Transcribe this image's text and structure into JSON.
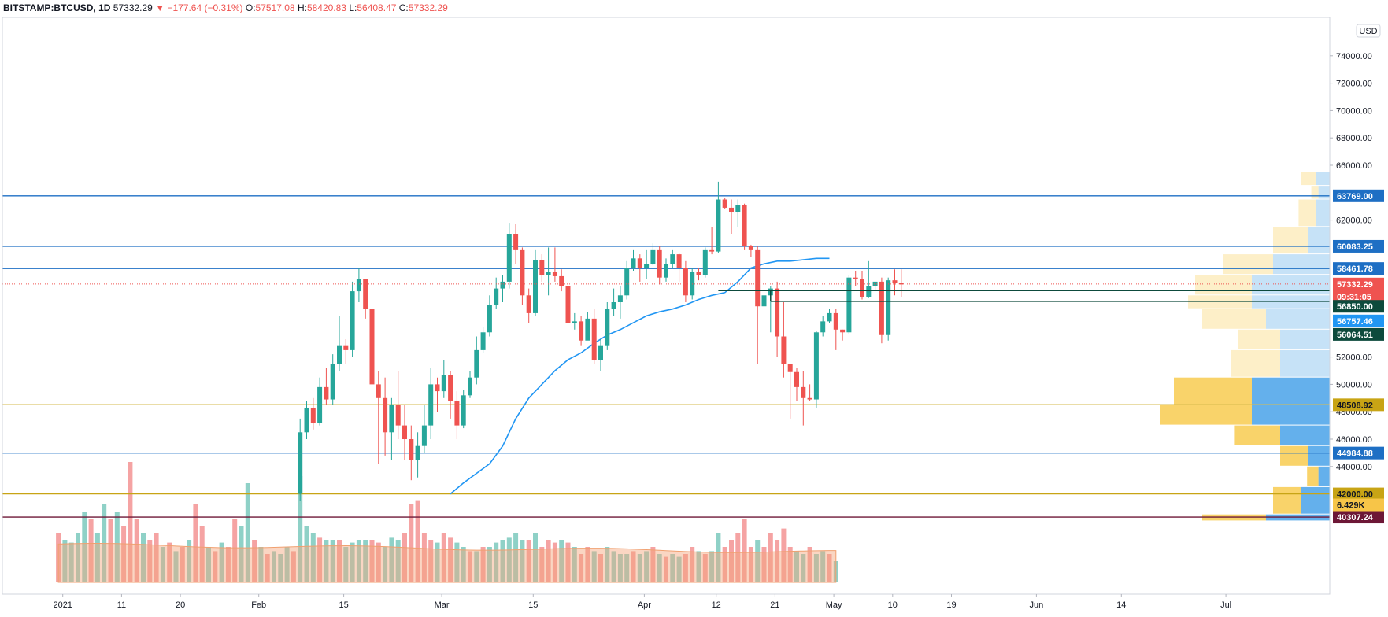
{
  "header": {
    "symbol": "BITSTAMP:BTCUSD, 1D",
    "last": "57332.29",
    "change": "−177.64 (−0.31%)",
    "o_label": "O:",
    "o_value": "57517.08",
    "h_label": "H:",
    "h_value": "58420.83",
    "l_label": "L:",
    "l_value": "56408.47",
    "c_label": "C:",
    "c_value": "57332.29"
  },
  "currency_label": "USD",
  "colors": {
    "up": "#26a69a",
    "down": "#ef5350",
    "ma": "#2196f3",
    "level_blue": "#1e6fc4",
    "level_gold": "#c8a415",
    "level_maroon": "#6d1736",
    "level_dark": "#0d4a3c"
  },
  "chart_data": {
    "type": "candlestick",
    "ylim": [
      40000,
      76000
    ],
    "y_ticks": [
      {
        "v": 74000,
        "label": "74000.00"
      },
      {
        "v": 72000,
        "label": "72000.00"
      },
      {
        "v": 70000,
        "label": "70000.00"
      },
      {
        "v": 68000,
        "label": "68000.00"
      },
      {
        "v": 66000,
        "label": "66000.00"
      },
      {
        "v": 62000,
        "label": "62000.00"
      },
      {
        "v": 52000,
        "label": "52000.00"
      },
      {
        "v": 50000,
        "label": "50000.00"
      },
      {
        "v": 48000,
        "label": "48000.00"
      },
      {
        "v": 46000,
        "label": "46000.00"
      },
      {
        "v": 44000,
        "label": "44000.00"
      }
    ],
    "x_range_days": [
      0,
      212
    ],
    "x_ticks": [
      {
        "d": 4,
        "label": "2021"
      },
      {
        "d": 13,
        "label": "11"
      },
      {
        "d": 22,
        "label": "20"
      },
      {
        "d": 34,
        "label": "Feb"
      },
      {
        "d": 47,
        "label": "15"
      },
      {
        "d": 62,
        "label": "Mar"
      },
      {
        "d": 76,
        "label": "15"
      },
      {
        "d": 93,
        "label": "Apr"
      },
      {
        "d": 104,
        "label": "12"
      },
      {
        "d": 113,
        "label": "21"
      },
      {
        "d": 122,
        "label": "May"
      },
      {
        "d": 131,
        "label": "10"
      },
      {
        "d": 140,
        "label": "19"
      },
      {
        "d": 153,
        "label": "Jun"
      },
      {
        "d": 166,
        "label": "14"
      },
      {
        "d": 182,
        "label": "Jul"
      }
    ],
    "candles": [
      [
        42,
        46.5,
        41.5,
        47.5
      ],
      [
        46.5,
        48.3,
        46,
        48.8
      ],
      [
        48.3,
        47.2,
        46.7,
        49
      ],
      [
        47.2,
        49.8,
        47,
        50.5
      ],
      [
        49.8,
        48.9,
        48.5,
        51.2
      ],
      [
        48.9,
        51.5,
        48.5,
        52.2
      ],
      [
        51.5,
        52.8,
        51,
        55
      ],
      [
        52.8,
        52.5,
        51.5,
        53.3
      ],
      [
        52.5,
        56.8,
        52,
        57.5
      ],
      [
        56.8,
        57.7,
        56,
        58.5
      ],
      [
        57.7,
        55.5,
        54.8,
        57.5
      ],
      [
        55.5,
        50,
        49,
        56
      ],
      [
        50,
        49,
        44.2,
        51
      ],
      [
        49,
        46.5,
        44.8,
        50.5
      ],
      [
        46.5,
        48.5,
        44.5,
        49
      ],
      [
        48.5,
        47,
        46,
        51
      ],
      [
        47,
        46,
        44.5,
        48.5
      ],
      [
        46,
        44.5,
        43,
        47
      ],
      [
        44.5,
        45.5,
        43.2,
        46.5
      ],
      [
        45.5,
        47,
        45,
        48.5
      ],
      [
        47,
        50,
        46,
        51.2
      ],
      [
        50,
        49.5,
        48,
        50.5
      ],
      [
        49.5,
        50.7,
        49,
        51.8
      ],
      [
        50.7,
        48.8,
        47.5,
        51
      ],
      [
        48.8,
        47,
        46,
        49.5
      ],
      [
        47,
        49.2,
        46.8,
        49.6
      ],
      [
        49.2,
        50.5,
        49,
        51
      ],
      [
        50.5,
        52.5,
        50,
        53.5
      ],
      [
        52.5,
        53.8,
        52.3,
        54.2
      ],
      [
        53.8,
        55.8,
        53.5,
        56.5
      ],
      [
        55.8,
        57,
        55.5,
        57.8
      ],
      [
        57,
        57.5,
        56,
        58
      ],
      [
        57.5,
        61,
        57,
        61.8
      ],
      [
        61,
        59.8,
        58.8,
        61.7
      ],
      [
        59.8,
        56.5,
        55.8,
        60
      ],
      [
        56.5,
        55.2,
        54.5,
        57
      ],
      [
        55.2,
        59.1,
        55,
        59.8
      ],
      [
        59.1,
        58,
        57.5,
        59.5
      ],
      [
        58,
        58.2,
        56.5,
        60
      ],
      [
        58.2,
        57.9,
        57.5,
        60
      ],
      [
        57.9,
        57.2,
        56.8,
        58.4
      ],
      [
        57.2,
        54.5,
        53.8,
        57.5
      ],
      [
        54.5,
        54.6,
        54,
        55.2
      ],
      [
        54.6,
        53.2,
        52.8,
        55
      ],
      [
        53.2,
        54.8,
        53.5,
        55.3
      ],
      [
        54.8,
        51.8,
        51.5,
        55.5
      ],
      [
        51.8,
        52.8,
        51,
        53.3
      ],
      [
        52.8,
        55.5,
        52.5,
        56
      ],
      [
        55.5,
        56,
        55,
        57
      ],
      [
        56,
        56.5,
        54.8,
        57.2
      ],
      [
        56.5,
        58.5,
        56.2,
        59
      ],
      [
        58.5,
        59.2,
        58.3,
        59.8
      ],
      [
        59.2,
        58.5,
        57.5,
        59.5
      ],
      [
        58.5,
        58.8,
        57.7,
        59.8
      ],
      [
        58.8,
        59.8,
        58.7,
        60.3
      ],
      [
        59.8,
        57.8,
        57.3,
        60.1
      ],
      [
        57.8,
        58.8,
        57.5,
        59.2
      ],
      [
        58.8,
        59.5,
        58.5,
        59.8
      ],
      [
        59.5,
        58.5,
        57.5,
        59.6
      ],
      [
        58.5,
        56.5,
        56,
        59
      ],
      [
        56.5,
        58.2,
        56.2,
        58.5
      ],
      [
        58.2,
        58,
        57.6,
        58.5
      ],
      [
        58,
        59.8,
        57.8,
        60
      ],
      [
        59.8,
        59.7,
        59.5,
        61.5
      ],
      [
        59.7,
        63.5,
        59.6,
        64.8
      ],
      [
        63.5,
        62.9,
        62.8,
        63.6
      ],
      [
        62.9,
        62.6,
        61,
        63.5
      ],
      [
        62.6,
        63.1,
        61.5,
        63.5
      ],
      [
        63.1,
        60.1,
        59.8,
        63.2
      ],
      [
        60.1,
        59.8,
        59.3,
        60.2
      ],
      [
        59.8,
        55.7,
        51.5,
        60.1
      ],
      [
        55.7,
        56.5,
        55,
        57
      ],
      [
        56.5,
        57,
        53.8,
        57.2
      ],
      [
        57,
        53.5,
        52,
        57.5
      ],
      [
        53.5,
        51.5,
        50.5,
        56
      ],
      [
        51.5,
        50.9,
        47.5,
        51.5
      ],
      [
        50.9,
        49.8,
        48.8,
        51.2
      ],
      [
        49.8,
        49,
        47,
        51
      ],
      [
        49,
        48.9,
        48.8,
        50
      ],
      [
        48.9,
        53.8,
        48.3,
        53.9
      ],
      [
        53.8,
        54.6,
        53.5,
        55
      ],
      [
        54.6,
        55.2,
        54.5,
        55.5
      ],
      [
        55.2,
        54,
        52.5,
        55.5
      ],
      [
        54,
        53.8,
        53.2,
        54
      ],
      [
        53.8,
        57.8,
        53.7,
        58
      ],
      [
        57.8,
        57.7,
        57.2,
        58.3
      ],
      [
        57.7,
        56.4,
        56.2,
        58.3
      ],
      [
        56.4,
        57.2,
        56.3,
        59
      ],
      [
        57.2,
        57.5,
        56.8,
        57.5
      ],
      [
        57.5,
        53.6,
        53,
        57.8
      ],
      [
        53.6,
        57.6,
        53.2,
        57.8
      ],
      [
        57.6,
        57.4,
        56.5,
        58.4
      ],
      [
        57.4,
        57.3,
        56.4,
        58.4
      ]
    ],
    "ma_line": [
      [
        62,
        42
      ],
      [
        64,
        42.8
      ],
      [
        66,
        43.5
      ],
      [
        68,
        44.2
      ],
      [
        70,
        45.5
      ],
      [
        72,
        47.5
      ],
      [
        74,
        49
      ],
      [
        76,
        50
      ],
      [
        78,
        51
      ],
      [
        80,
        51.8
      ],
      [
        82,
        52.3
      ],
      [
        84,
        53
      ],
      [
        86,
        53.6
      ],
      [
        88,
        54
      ],
      [
        90,
        54.5
      ],
      [
        92,
        55
      ],
      [
        94,
        55.3
      ],
      [
        96,
        55.5
      ],
      [
        98,
        55.8
      ],
      [
        100,
        56.2
      ],
      [
        102,
        56.5
      ],
      [
        104,
        56.7
      ],
      [
        106,
        57.5
      ],
      [
        108,
        58.5
      ],
      [
        110,
        58.8
      ],
      [
        112,
        59
      ],
      [
        114,
        59
      ],
      [
        116,
        59.1
      ],
      [
        118,
        59.2
      ],
      [
        120,
        59.2
      ]
    ],
    "levels": [
      {
        "price": 63769.0,
        "label": "63769.00",
        "color": "#1e6fc4"
      },
      {
        "price": 60083.25,
        "label": "60083.25",
        "color": "#1e6fc4"
      },
      {
        "price": 58461.78,
        "label": "58461.78",
        "color": "#1e6fc4"
      },
      {
        "price": 48508.92,
        "label": "48508.92",
        "color": "#c8a415"
      },
      {
        "price": 44984.88,
        "label": "44984.88",
        "color": "#1e6fc4"
      },
      {
        "price": 42000.0,
        "label": "42000.00",
        "color": "#c8a415"
      },
      {
        "price": 40307.24,
        "label": "40307.24",
        "color": "#6d1736"
      }
    ],
    "price_tags": [
      {
        "price": 57332.29,
        "label": "57332.29",
        "color": "#ef5350"
      },
      {
        "price": 56700,
        "label": "09:31:05",
        "color": "#ef5350"
      },
      {
        "price": 56850.0,
        "label": "56850.00",
        "color": "#0d4a3c"
      },
      {
        "price": 56757.46,
        "label": "56757.46",
        "color": "#2196f3"
      },
      {
        "price": 56064.51,
        "label": "56064.51",
        "color": "#0d4a3c"
      },
      {
        "price": 41000,
        "label": "6.429K",
        "color": "#f7c548"
      }
    ],
    "volume_profile": [
      [
        64.5,
        65.5,
        1,
        1
      ],
      [
        63.5,
        64.5,
        0.5,
        0.8
      ],
      [
        61.5,
        63.5,
        1.2,
        1.0
      ],
      [
        59.5,
        61.5,
        2.5,
        1.5
      ],
      [
        58.0,
        59.5,
        3.5,
        4.0
      ],
      [
        56.5,
        58.0,
        4.0,
        5.5
      ],
      [
        55.5,
        56.5,
        4.5,
        5.5
      ],
      [
        54.0,
        55.5,
        4.5,
        4.5
      ],
      [
        52.5,
        54.0,
        3.0,
        3.5
      ],
      [
        50.5,
        52.5,
        3.5,
        3.5
      ],
      [
        48.5,
        50.5,
        5.5,
        5.5
      ],
      [
        47.0,
        48.5,
        6.5,
        5.5
      ],
      [
        45.5,
        47.0,
        3.2,
        3.5
      ],
      [
        44.0,
        45.5,
        2.0,
        1.5
      ],
      [
        42.5,
        44.0,
        0.8,
        0.8
      ],
      [
        40.5,
        42.5,
        2.0,
        2.0
      ],
      [
        40.0,
        40.5,
        4.5,
        4.5
      ]
    ],
    "volumes": [
      [
        2,
        0.35,
        0
      ],
      [
        3,
        0.3,
        1
      ],
      [
        4,
        0.28,
        1
      ],
      [
        5,
        0.35,
        1
      ],
      [
        6,
        0.5,
        1
      ],
      [
        7,
        0.45,
        0
      ],
      [
        8,
        0.35,
        1
      ],
      [
        9,
        0.55,
        1
      ],
      [
        10,
        0.45,
        0
      ],
      [
        11,
        0.5,
        1
      ],
      [
        12,
        0.4,
        0
      ],
      [
        13,
        0.85,
        0
      ],
      [
        14,
        0.45,
        0
      ],
      [
        15,
        0.35,
        1
      ],
      [
        16,
        0.3,
        0
      ],
      [
        17,
        0.35,
        0
      ],
      [
        18,
        0.25,
        1
      ],
      [
        19,
        0.28,
        0
      ],
      [
        20,
        0.22,
        1
      ],
      [
        21,
        0.25,
        0
      ],
      [
        22,
        0.3,
        1
      ],
      [
        23,
        0.55,
        0
      ],
      [
        24,
        0.4,
        0
      ],
      [
        25,
        0.25,
        1
      ],
      [
        26,
        0.22,
        0
      ],
      [
        27,
        0.28,
        1
      ],
      [
        28,
        0.25,
        0
      ],
      [
        29,
        0.45,
        0
      ],
      [
        30,
        0.4,
        1
      ],
      [
        31,
        0.7,
        1
      ],
      [
        32,
        0.3,
        0
      ],
      [
        33,
        0.25,
        1
      ],
      [
        34,
        0.2,
        0
      ],
      [
        35,
        0.22,
        1
      ],
      [
        36,
        0.2,
        1
      ],
      [
        37,
        0.25,
        1
      ],
      [
        38,
        0.22,
        0
      ],
      [
        39,
        0.75,
        1
      ],
      [
        40,
        0.4,
        1
      ],
      [
        41,
        0.35,
        1
      ],
      [
        42,
        0.32,
        0
      ],
      [
        43,
        0.3,
        1
      ],
      [
        44,
        0.3,
        1
      ],
      [
        45,
        0.3,
        0
      ],
      [
        46,
        0.25,
        1
      ],
      [
        47,
        0.28,
        1
      ],
      [
        48,
        0.3,
        1
      ],
      [
        49,
        0.3,
        1
      ],
      [
        50,
        0.3,
        0
      ],
      [
        51,
        0.28,
        0
      ],
      [
        52,
        0.25,
        1
      ],
      [
        53,
        0.32,
        1
      ],
      [
        54,
        0.3,
        1
      ],
      [
        55,
        0.35,
        0
      ],
      [
        56,
        0.55,
        0
      ],
      [
        57,
        0.58,
        0
      ],
      [
        58,
        0.35,
        0
      ],
      [
        59,
        0.3,
        0
      ],
      [
        60,
        0.28,
        1
      ],
      [
        61,
        0.35,
        0
      ],
      [
        62,
        0.32,
        0
      ],
      [
        63,
        0.28,
        1
      ],
      [
        64,
        0.25,
        1
      ],
      [
        65,
        0.22,
        0
      ],
      [
        66,
        0.22,
        1
      ],
      [
        67,
        0.25,
        0
      ],
      [
        68,
        0.25,
        1
      ],
      [
        69,
        0.28,
        1
      ],
      [
        70,
        0.3,
        1
      ],
      [
        71,
        0.32,
        1
      ],
      [
        72,
        0.35,
        1
      ],
      [
        73,
        0.3,
        1
      ],
      [
        74,
        0.3,
        0
      ],
      [
        75,
        0.35,
        1
      ],
      [
        76,
        0.25,
        0
      ],
      [
        77,
        0.3,
        0
      ],
      [
        78,
        0.28,
        0
      ],
      [
        79,
        0.3,
        1
      ],
      [
        80,
        0.28,
        0
      ],
      [
        81,
        0.25,
        1
      ],
      [
        82,
        0.2,
        0
      ],
      [
        83,
        0.25,
        0
      ],
      [
        84,
        0.22,
        1
      ],
      [
        85,
        0.2,
        0
      ],
      [
        86,
        0.25,
        1
      ],
      [
        87,
        0.22,
        1
      ],
      [
        88,
        0.2,
        1
      ],
      [
        89,
        0.2,
        1
      ],
      [
        90,
        0.22,
        0
      ],
      [
        91,
        0.2,
        1
      ],
      [
        92,
        0.22,
        1
      ],
      [
        93,
        0.25,
        0
      ],
      [
        94,
        0.2,
        1
      ],
      [
        95,
        0.18,
        0
      ],
      [
        96,
        0.2,
        1
      ],
      [
        97,
        0.18,
        1
      ],
      [
        98,
        0.2,
        0
      ],
      [
        99,
        0.25,
        0
      ],
      [
        100,
        0.22,
        1
      ],
      [
        101,
        0.2,
        0
      ],
      [
        102,
        0.22,
        1
      ],
      [
        103,
        0.35,
        1
      ],
      [
        104,
        0.25,
        0
      ],
      [
        105,
        0.3,
        0
      ],
      [
        106,
        0.35,
        0
      ],
      [
        107,
        0.45,
        0
      ],
      [
        108,
        0.25,
        0
      ],
      [
        109,
        0.3,
        1
      ],
      [
        110,
        0.25,
        0
      ],
      [
        111,
        0.35,
        0
      ],
      [
        112,
        0.3,
        0
      ],
      [
        113,
        0.38,
        0
      ],
      [
        114,
        0.25,
        0
      ],
      [
        115,
        0.22,
        1
      ],
      [
        116,
        0.2,
        1
      ],
      [
        117,
        0.25,
        0
      ],
      [
        118,
        0.2,
        1
      ],
      [
        119,
        0.22,
        1
      ],
      [
        120,
        0.2,
        0
      ],
      [
        121,
        0.15,
        1
      ]
    ]
  }
}
